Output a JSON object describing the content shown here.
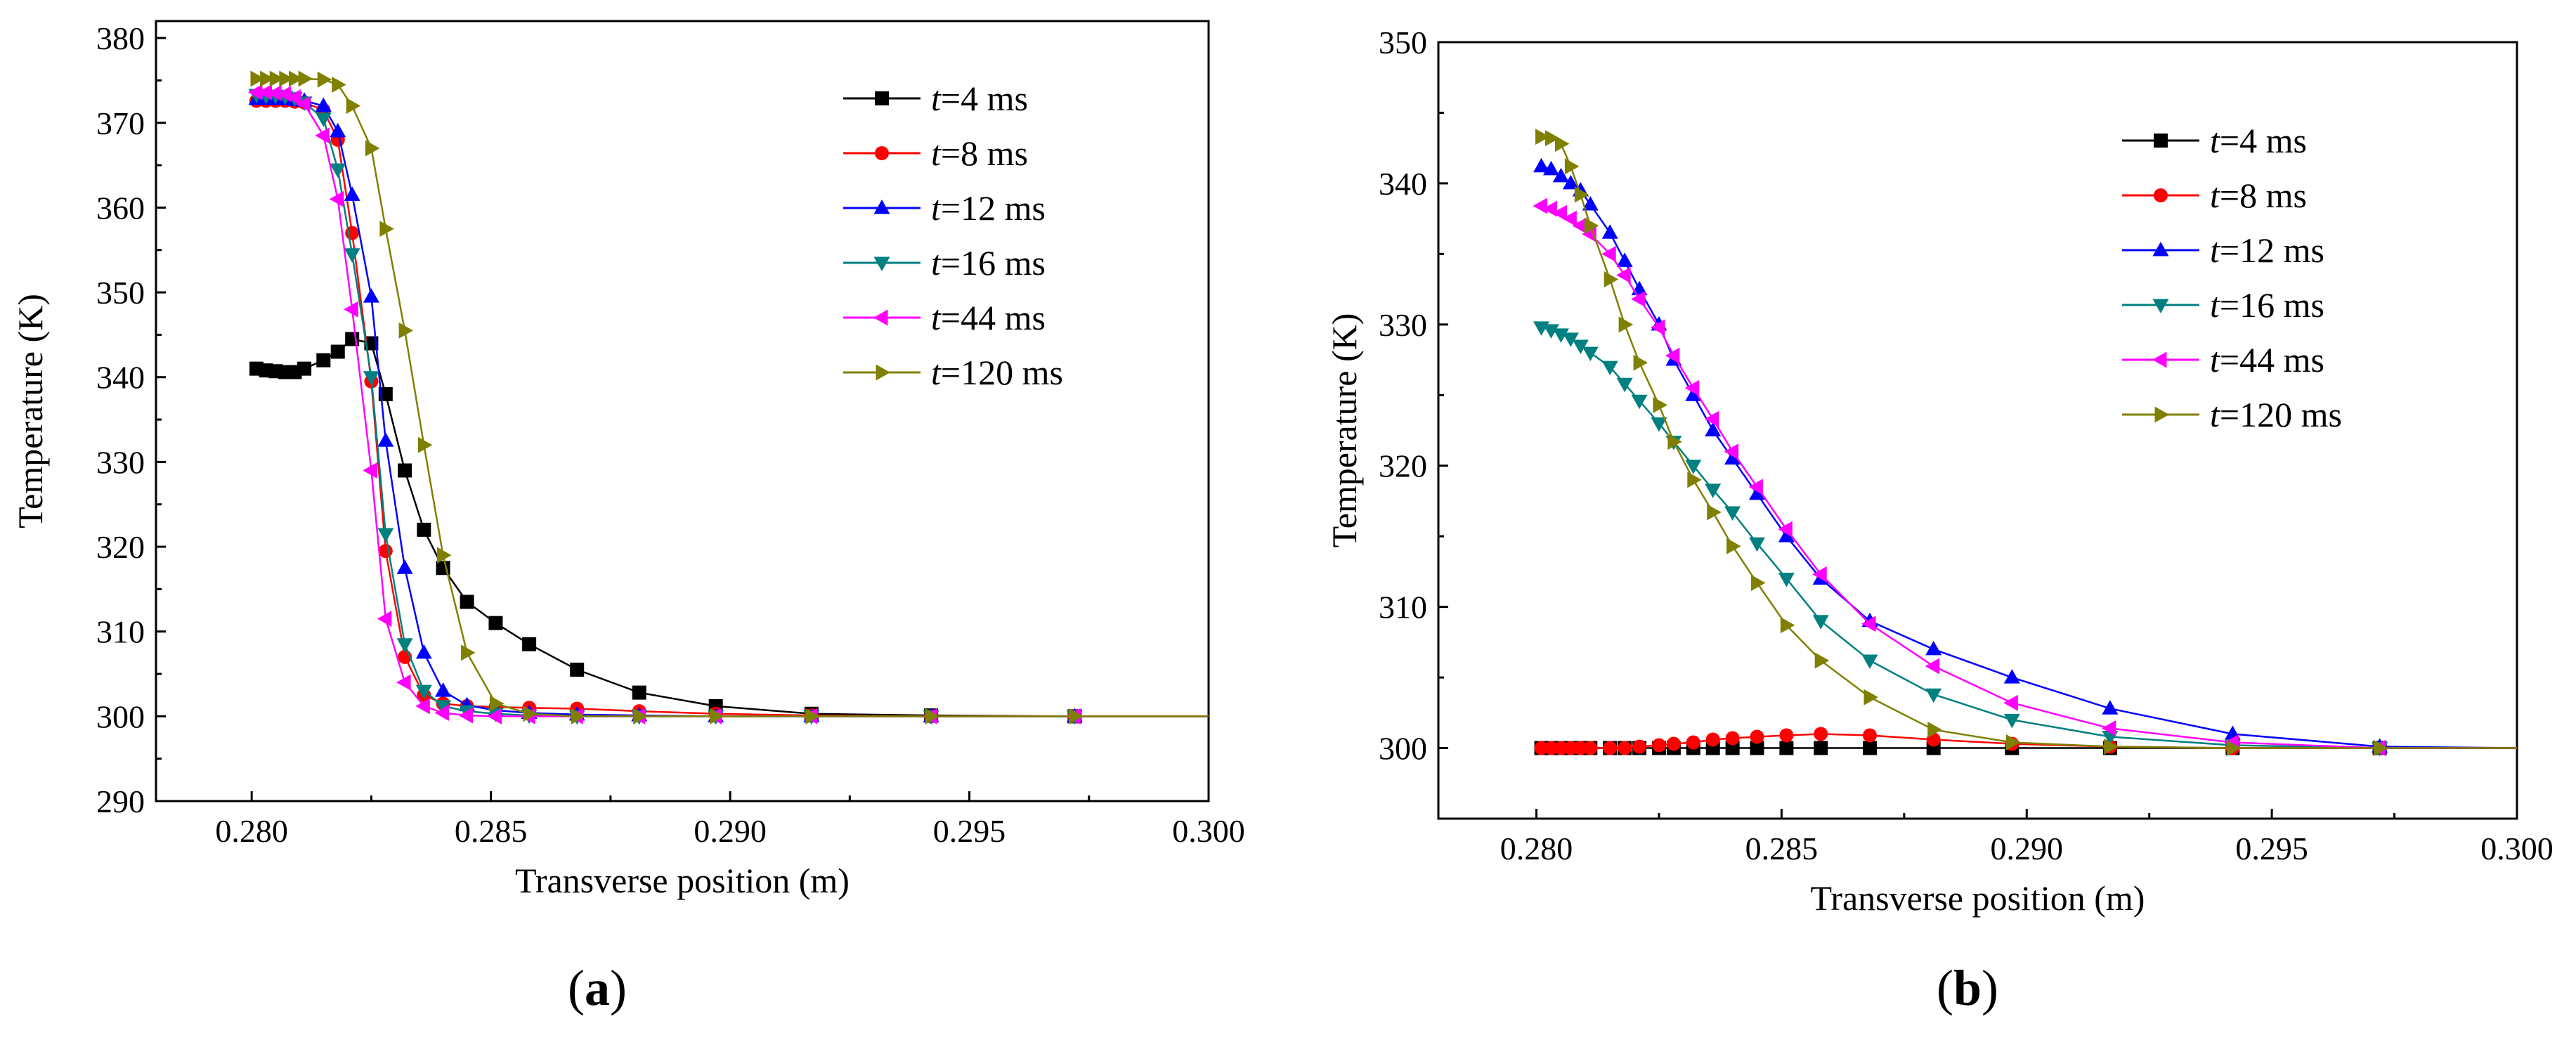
{
  "chart_data": [
    {
      "type": "line",
      "panel_label": "a",
      "xlabel": "Transverse position  (m)",
      "ylabel": "Temperature  (K)",
      "xlim": [
        0.278,
        0.3
      ],
      "ylim": [
        290,
        382
      ],
      "xticks": [
        0.28,
        0.285,
        0.29,
        0.295,
        0.3
      ],
      "yticks": [
        290,
        300,
        310,
        320,
        330,
        340,
        350,
        360,
        370,
        380
      ],
      "xtick_labels": [
        "0.280",
        "0.285",
        "0.290",
        "0.295",
        "0.300"
      ],
      "ytick_labels": [
        "290",
        "300",
        "310",
        "320",
        "330",
        "340",
        "350",
        "360",
        "370",
        "380"
      ],
      "grid": false,
      "legend_position": "top-right",
      "x": [
        0.2801,
        0.2803,
        0.2805,
        0.2807,
        0.2809,
        0.2811,
        0.2815,
        0.2818,
        0.2821,
        0.2825,
        0.2828,
        0.2832,
        0.2836,
        0.284,
        0.2845,
        0.2851,
        0.2858,
        0.2868,
        0.2881,
        0.2897,
        0.2917,
        0.2942,
        0.2972,
        0.3
      ],
      "series": [
        {
          "name": "t=4 ms",
          "color": "#000000",
          "marker": "square",
          "values": [
            341,
            340.8,
            340.7,
            340.6,
            340.6,
            341,
            342,
            343,
            344.5,
            344,
            338,
            329,
            322,
            317.5,
            313.5,
            311,
            308.5,
            305.5,
            302.8,
            301.2,
            300.3,
            300.1,
            300,
            300
          ]
        },
        {
          "name": "t=8 ms",
          "color": "#ff0000",
          "marker": "circle",
          "values": [
            372.6,
            372.6,
            372.6,
            372.6,
            372.5,
            372.4,
            371.5,
            368,
            357,
            339.5,
            319.5,
            307,
            302.5,
            301.5,
            301.2,
            301.1,
            301,
            300.9,
            300.6,
            300.3,
            300.1,
            300,
            300,
            300
          ]
        },
        {
          "name": "t=12 ms",
          "color": "#0000ff",
          "marker": "triangle-up",
          "values": [
            372.8,
            372.8,
            372.8,
            372.8,
            372.7,
            372.6,
            372,
            369,
            361.5,
            349.5,
            332.5,
            317.5,
            307.5,
            303,
            301.3,
            300.7,
            300.4,
            300.2,
            300.1,
            300,
            300,
            300,
            300,
            300
          ]
        },
        {
          "name": "t=16 ms",
          "color": "#008080",
          "marker": "triangle-down",
          "values": [
            373.3,
            373.2,
            373.2,
            373.1,
            372.9,
            372.4,
            370.5,
            364.5,
            354.5,
            340,
            321.5,
            308.5,
            303,
            301.2,
            300.6,
            300.3,
            300.1,
            300,
            300,
            300,
            300,
            300,
            300,
            300
          ]
        },
        {
          "name": "t=44 ms",
          "color": "#ff00ff",
          "marker": "triangle-left",
          "values": [
            373.6,
            373.6,
            373.5,
            373.4,
            373,
            372.2,
            368.5,
            361,
            348,
            329,
            311.5,
            304,
            301.2,
            300.4,
            300.1,
            300,
            300,
            300,
            300,
            300,
            300,
            300,
            300,
            300
          ]
        },
        {
          "name": "t=120 ms",
          "color": "#808000",
          "marker": "triangle-right",
          "values": [
            375.2,
            375.2,
            375.2,
            375.2,
            375.2,
            375.2,
            375.1,
            374.5,
            372,
            367,
            357.5,
            345.5,
            332,
            319,
            307.5,
            301.5,
            300.3,
            300,
            300,
            300,
            300,
            300,
            300,
            300
          ]
        }
      ]
    },
    {
      "type": "line",
      "panel_label": "b",
      "xlabel": "Transverse position  (m)",
      "ylabel": "Temperature  (K)",
      "xlim": [
        0.278,
        0.3
      ],
      "ylim": [
        295,
        350
      ],
      "xticks": [
        0.28,
        0.285,
        0.29,
        0.295,
        0.3
      ],
      "yticks": [
        300,
        310,
        320,
        330,
        340,
        350
      ],
      "xtick_labels": [
        "0.280",
        "0.285",
        "0.290",
        "0.295",
        "0.300"
      ],
      "ytick_labels": [
        "300",
        "310",
        "320",
        "330",
        "340",
        "350"
      ],
      "grid": false,
      "legend_position": "top-right",
      "x": [
        0.2801,
        0.2803,
        0.2805,
        0.2807,
        0.2809,
        0.2811,
        0.2815,
        0.2818,
        0.2821,
        0.2825,
        0.2828,
        0.2832,
        0.2836,
        0.284,
        0.2845,
        0.2851,
        0.2858,
        0.2868,
        0.2881,
        0.2897,
        0.2917,
        0.2942,
        0.2972,
        0.3
      ],
      "series": [
        {
          "name": "t=4 ms",
          "color": "#000000",
          "marker": "square",
          "values": [
            300,
            300,
            300,
            300,
            300,
            300,
            300,
            300,
            300,
            300,
            300,
            300,
            300,
            300,
            300,
            300,
            300,
            300,
            300,
            300,
            300,
            300,
            300,
            300
          ]
        },
        {
          "name": "t=8 ms",
          "color": "#ff0000",
          "marker": "circle",
          "values": [
            300,
            300,
            300,
            300,
            300,
            300,
            300,
            300,
            300.1,
            300.2,
            300.3,
            300.4,
            300.6,
            300.7,
            300.8,
            300.9,
            301,
            300.9,
            300.6,
            300.3,
            300.1,
            300,
            300,
            300
          ]
        },
        {
          "name": "t=12 ms",
          "color": "#0000ff",
          "marker": "triangle-up",
          "values": [
            341.2,
            341,
            340.5,
            340,
            339.5,
            338.5,
            336.5,
            334.5,
            332.5,
            330,
            327.5,
            325,
            322.5,
            320.5,
            318,
            315,
            312,
            309,
            307,
            305,
            302.8,
            301,
            300.1,
            300
          ]
        },
        {
          "name": "t=16 ms",
          "color": "#008080",
          "marker": "triangle-down",
          "values": [
            329.8,
            329.6,
            329.3,
            329,
            328.5,
            328,
            327,
            325.8,
            324.6,
            323,
            321.7,
            320,
            318.3,
            316.7,
            314.5,
            312,
            309,
            306.2,
            303.8,
            302,
            300.8,
            300.2,
            300,
            300
          ]
        },
        {
          "name": "t=44 ms",
          "color": "#ff00ff",
          "marker": "triangle-left",
          "values": [
            338.4,
            338.2,
            337.9,
            337.5,
            337,
            336.4,
            335,
            333.5,
            331.8,
            329.8,
            327.8,
            325.5,
            323.3,
            321,
            318.5,
            315.5,
            312.3,
            308.8,
            305.8,
            303.2,
            301.4,
            300.4,
            300,
            300
          ]
        },
        {
          "name": "t=120 ms",
          "color": "#808000",
          "marker": "triangle-right",
          "values": [
            343.3,
            343.2,
            342.8,
            341.2,
            339.2,
            337,
            333.2,
            330,
            327.3,
            324.3,
            321.7,
            319,
            316.7,
            314.3,
            311.7,
            308.7,
            306.2,
            303.6,
            301.3,
            300.4,
            300.1,
            300,
            300,
            300
          ]
        }
      ]
    }
  ]
}
